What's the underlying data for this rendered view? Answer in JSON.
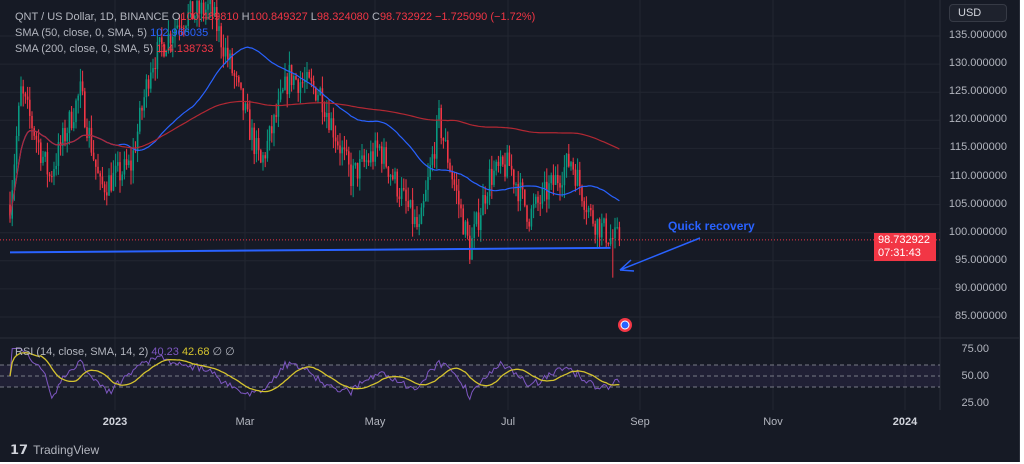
{
  "header": {
    "symbol": "QNT / US Dollar, 1D, BINANCE",
    "open_label": "O",
    "open": "100.489810",
    "high_label": "H",
    "high": "100.849327",
    "low_label": "L",
    "low": "98.324080",
    "close_label": "C",
    "close": "98.732922",
    "change": "−1.725090 (−1.72%)"
  },
  "indicators": {
    "sma50_label": "SMA (50, close, 0, SMA, 5)",
    "sma50_value": "102.966035",
    "sma200_label": "SMA (200, close, 0, SMA, 5)",
    "sma200_value": "114.138733",
    "rsi_label": "RSI (14, close, SMA, 14, 2)",
    "rsi_value": "40.23",
    "rsi_sma_value": "42.68",
    "rsi_icons": "∅ ∅"
  },
  "price_axis": {
    "currency": "USD",
    "labels": [
      "135.000000",
      "130.000000",
      "125.000000",
      "120.000000",
      "115.000000",
      "110.000000",
      "105.000000",
      "100.000000",
      "95.000000",
      "90.000000",
      "85.000000"
    ],
    "current_price": "98.732922",
    "countdown": "07:31:43"
  },
  "rsi_axis": {
    "labels": [
      "75.00",
      "50.00",
      "25.00"
    ]
  },
  "time_axis": {
    "labels": [
      {
        "t": "2023",
        "bold": true
      },
      {
        "t": "Mar",
        "bold": false
      },
      {
        "t": "May",
        "bold": false
      },
      {
        "t": "Jul",
        "bold": false
      },
      {
        "t": "Sep",
        "bold": false
      },
      {
        "t": "Nov",
        "bold": false
      },
      {
        "t": "2024",
        "bold": true
      }
    ]
  },
  "annotation": {
    "text": "Quick recovery"
  },
  "footer": {
    "brand": "TradingView"
  },
  "colors": {
    "up": "#089981",
    "down": "#f23645",
    "sma50": "#2962ff",
    "sma200": "#b22833",
    "rsi": "#7e57c2",
    "rsi_sma": "#d4c32e",
    "bg": "#161a25"
  },
  "chart_data": {
    "type": "candlestick",
    "title": "QNT / US Dollar, 1D, BINANCE",
    "ylim": [
      82,
      138
    ],
    "x_unit": "days since 2022-11-08",
    "close_path": [
      [
        0,
        105
      ],
      [
        5,
        125
      ],
      [
        18,
        110
      ],
      [
        32,
        125
      ],
      [
        41,
        108
      ],
      [
        55,
        112
      ],
      [
        64,
        130
      ],
      [
        77,
        138
      ],
      [
        91,
        140
      ],
      [
        100,
        130
      ],
      [
        114,
        112
      ],
      [
        127,
        128
      ],
      [
        141,
        125
      ],
      [
        155,
        110
      ],
      [
        168,
        115
      ],
      [
        186,
        100
      ],
      [
        195,
        120
      ],
      [
        209,
        97
      ],
      [
        218,
        110
      ],
      [
        227,
        112
      ],
      [
        236,
        103
      ],
      [
        255,
        113
      ],
      [
        264,
        103
      ],
      [
        273,
        99
      ],
      [
        277,
        98.73
      ]
    ],
    "support_line": {
      "from": [
        0,
        96.5
      ],
      "to": [
        273,
        97.3
      ]
    },
    "min_wick": 92,
    "rsi_levels": [
      70,
      50,
      30
    ]
  }
}
